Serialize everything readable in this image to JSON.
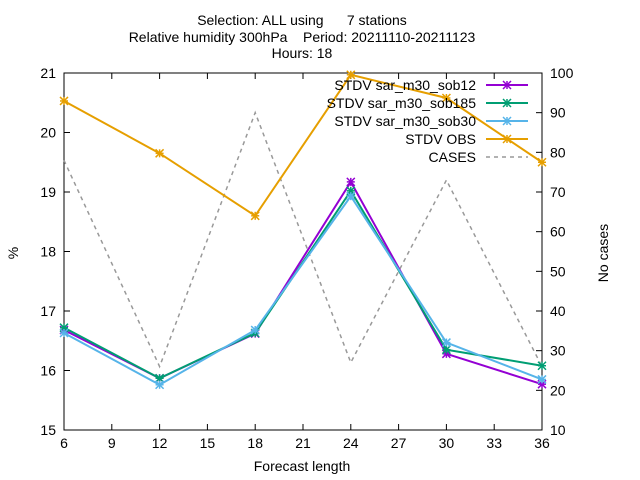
{
  "chart_data": {
    "type": "line",
    "title_lines": [
      "Selection: ALL using      7 stations",
      "Relative humidity 300hPa    Period: 20211110-20211123",
      "Hours: 18"
    ],
    "xlabel": "Forecast length",
    "ylabel": "%",
    "y2label": "No cases",
    "x": [
      6,
      12,
      18,
      24,
      30,
      36
    ],
    "xticks": [
      6,
      9,
      12,
      15,
      18,
      21,
      24,
      27,
      30,
      33,
      36
    ],
    "xlim": [
      6,
      36
    ],
    "ylim": [
      15,
      21
    ],
    "yticks": [
      15,
      16,
      17,
      18,
      19,
      20,
      21
    ],
    "y2lim": [
      10,
      100
    ],
    "y2ticks": [
      10,
      20,
      30,
      40,
      50,
      60,
      70,
      80,
      90,
      100
    ],
    "series": [
      {
        "name": "STDV sar_m30_sob12",
        "color": "#9400d3",
        "axis": "y",
        "values": [
          16.68,
          15.87,
          16.62,
          19.17,
          16.28,
          15.77
        ]
      },
      {
        "name": "STDV sar_m30_sob185",
        "color": "#009e73",
        "axis": "y",
        "values": [
          16.72,
          15.87,
          16.63,
          19.02,
          16.35,
          16.08
        ]
      },
      {
        "name": "STDV sar_m30_sob30",
        "color": "#56b4e9",
        "axis": "y",
        "values": [
          16.63,
          15.76,
          16.68,
          18.93,
          16.47,
          15.85
        ]
      },
      {
        "name": "STDV OBS",
        "color": "#e69f00",
        "axis": "y",
        "values": [
          20.53,
          19.65,
          18.6,
          20.97,
          20.58,
          19.5
        ]
      },
      {
        "name": "CASES",
        "color": "#999999",
        "axis": "y2",
        "dashed": true,
        "values": [
          78,
          26,
          90,
          27,
          73,
          26
        ]
      }
    ]
  }
}
